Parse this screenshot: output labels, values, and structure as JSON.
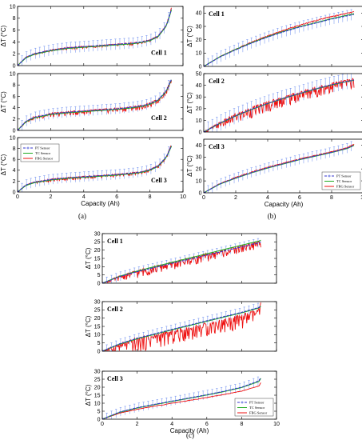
{
  "figure": {
    "panel_labels": [
      "(a)",
      "(b)",
      "(c)"
    ]
  },
  "legend": {
    "entries": [
      "PT Sensor",
      "TC Sensor",
      "FBG Sensor"
    ]
  },
  "colors": {
    "pt": "#3333cc",
    "tc": "#22aa22",
    "fbg": "#ee1111",
    "errbar": "#6688ee"
  },
  "chart_data": [
    {
      "panel": "(a)",
      "cell": "Cell 1",
      "type": "line",
      "xlabel": "",
      "ylabel": "ΔT (°C)",
      "xlim": [
        0,
        10
      ],
      "ylim": [
        0,
        10
      ],
      "xticks": [
        0,
        2,
        4,
        6,
        8,
        10
      ],
      "yticks": [
        0,
        2,
        4,
        6,
        8,
        10
      ],
      "show_xticklabels": false,
      "legend": false,
      "x": [
        0,
        0.5,
        1,
        2,
        3,
        4,
        5,
        6,
        7,
        7.5,
        8,
        8.5,
        9,
        9.3
      ],
      "series": [
        {
          "name": "PT Sensor",
          "values": [
            0,
            1.4,
            2.0,
            2.6,
            3.0,
            3.2,
            3.4,
            3.6,
            3.8,
            4.0,
            4.3,
            5.0,
            6.8,
            9.5
          ],
          "err": 1.0
        },
        {
          "name": "TC Sensor",
          "values": [
            0,
            1.3,
            1.9,
            2.5,
            2.9,
            3.1,
            3.3,
            3.5,
            3.7,
            3.9,
            4.2,
            4.9,
            6.7,
            9.4
          ]
        },
        {
          "name": "FBG Sensor",
          "values": [
            0,
            1.4,
            2.0,
            2.6,
            3.0,
            3.2,
            3.4,
            3.6,
            3.8,
            4.0,
            4.3,
            5.0,
            6.9,
            9.7
          ],
          "noise": 0.15
        }
      ]
    },
    {
      "panel": "(a)",
      "cell": "Cell 2",
      "type": "line",
      "xlabel": "",
      "ylabel": "ΔT (°C)",
      "xlim": [
        0,
        10
      ],
      "ylim": [
        0,
        10
      ],
      "xticks": [
        0,
        2,
        4,
        6,
        8,
        10
      ],
      "yticks": [
        0,
        2,
        4,
        6,
        8,
        10
      ],
      "show_xticklabels": false,
      "legend": false,
      "x": [
        0,
        0.5,
        1,
        2,
        3,
        4,
        5,
        6,
        7,
        7.5,
        8,
        8.5,
        9,
        9.3
      ],
      "series": [
        {
          "name": "PT Sensor",
          "values": [
            0,
            1.6,
            2.3,
            2.9,
            3.2,
            3.4,
            3.6,
            3.8,
            4.1,
            4.3,
            4.7,
            5.4,
            7.0,
            9.0
          ],
          "err": 1.0
        },
        {
          "name": "TC Sensor",
          "values": [
            0,
            1.5,
            2.2,
            2.8,
            3.1,
            3.3,
            3.5,
            3.7,
            4.0,
            4.2,
            4.6,
            5.3,
            6.9,
            8.9
          ]
        },
        {
          "name": "FBG Sensor",
          "values": [
            0,
            1.6,
            2.3,
            2.9,
            3.2,
            3.4,
            3.6,
            3.8,
            4.1,
            4.3,
            4.7,
            5.4,
            7.0,
            9.1
          ],
          "noise": 0.3
        }
      ]
    },
    {
      "panel": "(a)",
      "cell": "Cell 3",
      "type": "line",
      "xlabel": "Capacity (Ah)",
      "ylabel": "ΔT (°C)",
      "xlim": [
        0,
        10
      ],
      "ylim": [
        0,
        10
      ],
      "xticks": [
        0,
        2,
        4,
        6,
        8,
        10
      ],
      "yticks": [
        0,
        2,
        4,
        6,
        8,
        10
      ],
      "show_xticklabels": true,
      "legend": true,
      "x": [
        0,
        0.5,
        1,
        2,
        3,
        4,
        5,
        6,
        7,
        7.5,
        8,
        8.5,
        9,
        9.3
      ],
      "series": [
        {
          "name": "PT Sensor",
          "values": [
            0,
            1.3,
            1.8,
            2.3,
            2.6,
            2.8,
            3.0,
            3.2,
            3.5,
            3.7,
            4.1,
            4.8,
            6.5,
            8.5
          ],
          "err": 1.0
        },
        {
          "name": "TC Sensor",
          "values": [
            0,
            1.2,
            1.7,
            2.2,
            2.5,
            2.7,
            2.9,
            3.1,
            3.4,
            3.6,
            4.0,
            4.7,
            6.4,
            8.4
          ]
        },
        {
          "name": "FBG Sensor",
          "values": [
            0,
            1.3,
            1.8,
            2.3,
            2.6,
            2.8,
            3.0,
            3.2,
            3.5,
            3.7,
            4.1,
            4.8,
            6.5,
            8.6
          ],
          "noise": 0.2
        }
      ]
    },
    {
      "panel": "(b)",
      "cell": "Cell 1",
      "type": "line",
      "xlabel": "",
      "ylabel": "ΔT (°C)",
      "xlim": [
        0,
        10
      ],
      "ylim": [
        0,
        45
      ],
      "xticks": [
        0,
        2,
        4,
        6,
        8,
        10
      ],
      "yticks": [
        0,
        10,
        20,
        30,
        40
      ],
      "show_xticklabels": false,
      "legend": false,
      "x": [
        0,
        1,
        2,
        3,
        4,
        5,
        6,
        7,
        8,
        9,
        9.4
      ],
      "series": [
        {
          "name": "PT Sensor",
          "values": [
            0,
            7,
            12.5,
            17.5,
            22,
            26,
            29.5,
            32.5,
            35.5,
            38,
            39
          ],
          "err": 1.0
        },
        {
          "name": "TC Sensor",
          "values": [
            0,
            7.2,
            12.8,
            17.8,
            22.3,
            26.3,
            29.8,
            32.8,
            35.8,
            38.5,
            39.5
          ]
        },
        {
          "name": "FBG Sensor",
          "values": [
            0,
            7.3,
            13,
            18.3,
            23,
            27.2,
            31,
            34.5,
            37.5,
            40,
            41
          ],
          "noise": 0.3
        }
      ]
    },
    {
      "panel": "(b)",
      "cell": "Cell 2",
      "type": "line",
      "xlabel": "",
      "ylabel": "ΔT (°C)",
      "xlim": [
        0,
        10
      ],
      "ylim": [
        0,
        50
      ],
      "xticks": [
        0,
        2,
        4,
        6,
        8,
        10
      ],
      "yticks": [
        0,
        10,
        20,
        30,
        40,
        50
      ],
      "show_xticklabels": false,
      "legend": false,
      "x": [
        0,
        1,
        2,
        3,
        4,
        5,
        6,
        7,
        8,
        9,
        9.4
      ],
      "series": [
        {
          "name": "PT Sensor",
          "values": [
            0,
            7.5,
            14,
            19.5,
            24.5,
            29,
            33,
            37,
            40.5,
            43.5,
            44.5
          ],
          "err": 1.5
        },
        {
          "name": "TC Sensor",
          "values": [
            0,
            7.3,
            13.8,
            19.3,
            24.3,
            28.8,
            32.8,
            36.8,
            40.3,
            43.3,
            44.3
          ]
        },
        {
          "name": "FBG Sensor",
          "values": [
            0,
            7.5,
            14,
            19.5,
            24.5,
            29,
            33,
            37,
            40.5,
            43.5,
            44.5
          ],
          "noise": 3.5
        }
      ]
    },
    {
      "panel": "(b)",
      "cell": "Cell 3",
      "type": "line",
      "xlabel": "Capacity (Ah)",
      "ylabel": "ΔT (°C)",
      "xlim": [
        0,
        10
      ],
      "ylim": [
        0,
        45
      ],
      "xticks": [
        0,
        2,
        4,
        6,
        8,
        10
      ],
      "yticks": [
        0,
        10,
        20,
        30,
        40
      ],
      "show_xticklabels": true,
      "legend": true,
      "x": [
        0,
        1,
        2,
        3,
        4,
        5,
        6,
        7,
        8,
        9,
        9.4
      ],
      "series": [
        {
          "name": "PT Sensor",
          "values": [
            0,
            7.5,
            12.5,
            17,
            21,
            24.5,
            28,
            31,
            34,
            37.5,
            40
          ],
          "err": 1.0
        },
        {
          "name": "TC Sensor",
          "values": [
            0,
            7.3,
            12.3,
            16.8,
            20.8,
            24.3,
            27.8,
            30.8,
            33.8,
            37.3,
            39.8
          ]
        },
        {
          "name": "FBG Sensor",
          "values": [
            0,
            7.8,
            13,
            17.5,
            21.5,
            25,
            28.5,
            31.5,
            34.5,
            38,
            41
          ],
          "noise": 0.4
        }
      ]
    },
    {
      "panel": "(c)",
      "cell": "Cell 1",
      "type": "line",
      "xlabel": "",
      "ylabel": "ΔT (°C)",
      "xlim": [
        0,
        10
      ],
      "ylim": [
        0,
        30
      ],
      "xticks": [
        0,
        2,
        4,
        6,
        8,
        10
      ],
      "yticks": [
        0,
        5,
        10,
        15,
        20,
        25,
        30
      ],
      "show_xticklabels": false,
      "legend": false,
      "x": [
        0,
        1,
        2,
        3,
        4,
        5,
        6,
        7,
        8,
        9,
        9.1
      ],
      "series": [
        {
          "name": "PT Sensor",
          "values": [
            0,
            4,
            7,
            9.5,
            12,
            14.5,
            17,
            19.5,
            22,
            24.5,
            25
          ],
          "err": 1.0
        },
        {
          "name": "TC Sensor",
          "values": [
            0,
            4.2,
            7.3,
            10,
            12.6,
            15.2,
            17.8,
            20.4,
            23,
            25.5,
            26
          ]
        },
        {
          "name": "FBG Sensor",
          "values": [
            0,
            4,
            7,
            9.5,
            12,
            14.5,
            17,
            19.5,
            22,
            24.5,
            25
          ],
          "noise": 1.8
        }
      ]
    },
    {
      "panel": "(c)",
      "cell": "Cell 2",
      "type": "line",
      "xlabel": "",
      "ylabel": "ΔT (°C)",
      "xlim": [
        0,
        10
      ],
      "ylim": [
        0,
        30
      ],
      "xticks": [
        0,
        2,
        4,
        6,
        8,
        10
      ],
      "yticks": [
        0,
        5,
        10,
        15,
        20,
        25,
        30
      ],
      "show_xticklabels": false,
      "legend": false,
      "x": [
        0,
        1,
        2,
        3,
        4,
        5,
        6,
        7,
        8,
        9,
        9.1
      ],
      "series": [
        {
          "name": "PT Sensor",
          "values": [
            0,
            4.5,
            7.8,
            10.5,
            13.2,
            15.8,
            18.4,
            21,
            23.5,
            26.5,
            27.5
          ],
          "err": 1.0
        },
        {
          "name": "TC Sensor",
          "values": [
            0,
            4.3,
            7.5,
            10.2,
            12.9,
            15.5,
            18.1,
            20.7,
            23.2,
            26.2,
            27.2
          ]
        },
        {
          "name": "FBG Sensor",
          "values": [
            0,
            3.6,
            6.4,
            8.7,
            11,
            13.3,
            15.6,
            18,
            20.5,
            24,
            28
          ],
          "noise": 3.2
        }
      ]
    },
    {
      "panel": "(c)",
      "cell": "Cell 3",
      "type": "line",
      "xlabel": "Capacity (Ah)",
      "ylabel": "ΔT (°C)",
      "xlim": [
        0,
        10
      ],
      "ylim": [
        0,
        30
      ],
      "xticks": [
        0,
        2,
        4,
        6,
        8,
        10
      ],
      "yticks": [
        0,
        5,
        10,
        15,
        20,
        25,
        30
      ],
      "show_xticklabels": true,
      "legend": true,
      "x": [
        0,
        1,
        2,
        3,
        4,
        5,
        6,
        7,
        8,
        9,
        9.1
      ],
      "series": [
        {
          "name": "PT Sensor",
          "values": [
            0,
            4.5,
            7.2,
            9.3,
            11.3,
            13.3,
            15.3,
            17.5,
            20,
            24,
            26
          ],
          "err": 1.0
        },
        {
          "name": "TC Sensor",
          "values": [
            0,
            4.3,
            7,
            9.1,
            11.1,
            13.1,
            15.1,
            17.3,
            19.8,
            23.6,
            25.5
          ]
        },
        {
          "name": "FBG Sensor",
          "values": [
            0,
            3.8,
            6.2,
            8.2,
            10,
            11.8,
            13.6,
            15.5,
            17.6,
            20.8,
            23
          ],
          "noise": 0.1
        }
      ]
    }
  ]
}
